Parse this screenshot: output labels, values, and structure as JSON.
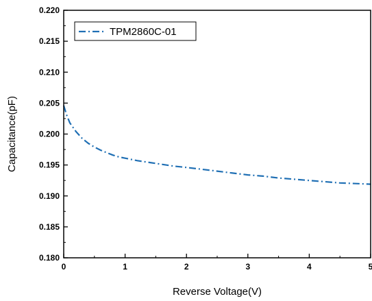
{
  "chart_data": {
    "type": "line",
    "xlabel": "Reverse Voltage(V)",
    "ylabel": "Capacitance(pF)",
    "xlim": [
      0,
      5
    ],
    "ylim": [
      0.18,
      0.22
    ],
    "x_ticks": [
      0,
      1,
      2,
      3,
      4,
      5
    ],
    "x_tick_labels": [
      "0",
      "1",
      "2",
      "3",
      "4",
      "5"
    ],
    "y_ticks": [
      0.18,
      0.185,
      0.19,
      0.195,
      0.2,
      0.205,
      0.21,
      0.215,
      0.22
    ],
    "y_tick_labels": [
      "0.180",
      "0.185",
      "0.190",
      "0.195",
      "0.200",
      "0.205",
      "0.210",
      "0.215",
      "0.220"
    ],
    "grid": false,
    "legend_position": "top-left",
    "series": [
      {
        "name": "TPM2860C-01",
        "color": "#1f6fb4",
        "line_style": "dash-dot",
        "x": [
          0,
          0.05,
          0.1,
          0.2,
          0.3,
          0.4,
          0.5,
          0.6,
          0.7,
          0.8,
          0.9,
          1.0,
          1.2,
          1.4,
          1.6,
          1.8,
          2.0,
          2.25,
          2.5,
          2.75,
          3.0,
          3.25,
          3.5,
          3.75,
          4.0,
          4.25,
          4.5,
          4.75,
          5.0
        ],
        "y": [
          0.2046,
          0.203,
          0.2018,
          0.2004,
          0.1993,
          0.1985,
          0.1979,
          0.1974,
          0.197,
          0.1966,
          0.1963,
          0.1961,
          0.1957,
          0.1954,
          0.1951,
          0.1948,
          0.1946,
          0.1943,
          0.194,
          0.1937,
          0.1934,
          0.1932,
          0.1929,
          0.1927,
          0.1925,
          0.1923,
          0.1921,
          0.192,
          0.1919
        ]
      }
    ]
  }
}
